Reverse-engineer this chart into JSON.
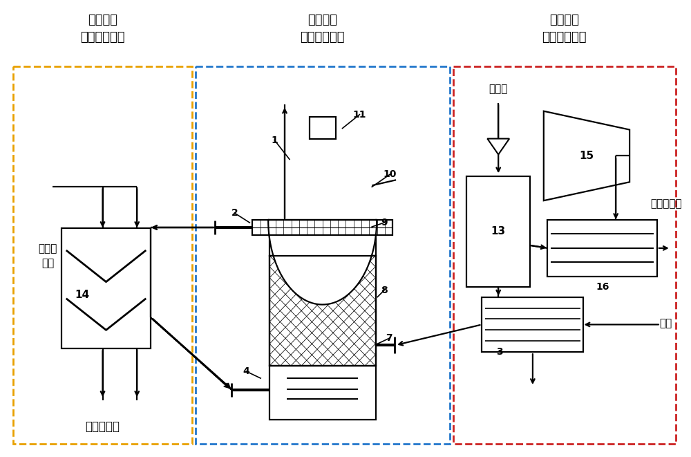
{
  "bg_color": "#ffffff",
  "box1_label": "低温烟气\n品位提升单元",
  "box2_label": "低温烟气\n余热回收单元",
  "box3_label": "中温烟气\n余热回收单元",
  "label_steam_left": "汽轮机\n抽汽",
  "label_heat_water": "供热循环水",
  "label_condensate": "凝结水",
  "label_steam_right": "汽轮机抽汽",
  "label_fluegas": "烟气",
  "box1_color": "#E8A000",
  "box2_color": "#2277CC",
  "box3_color": "#CC2222",
  "lw": 1.6
}
